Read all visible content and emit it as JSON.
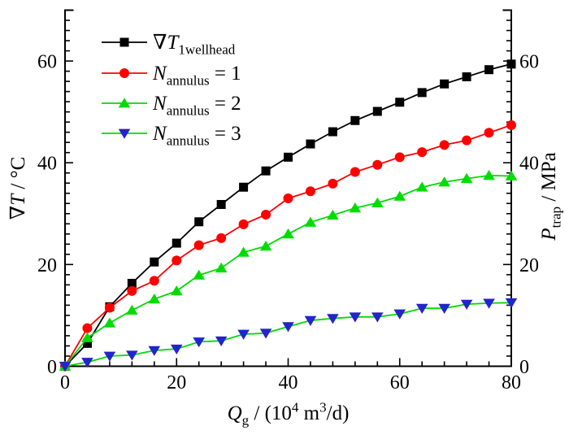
{
  "chart_data": {
    "type": "line",
    "title": "",
    "xlabel": "Q_g / (10^4 m^3/d)",
    "ylabel_left": "∇T / °C",
    "ylabel_right": "P_trap / MPa",
    "xlim": [
      0,
      80
    ],
    "ylim": [
      0,
      70
    ],
    "grid": false,
    "legend_position": "top-left-inside",
    "x_major_ticks": [
      0,
      20,
      40,
      60,
      80
    ],
    "x_minor_step": 4,
    "y_major_ticks": [
      0,
      20,
      40,
      60
    ],
    "y_minor_step": 2,
    "x_tick_labels": [
      "0",
      "20",
      "40",
      "60",
      "80"
    ],
    "y_tick_labels_left": [
      "0",
      "20",
      "40",
      "60"
    ],
    "y_tick_labels_right": [
      "0",
      "20",
      "40",
      "60"
    ],
    "frame_color": "#000000",
    "x": [
      0,
      4,
      8,
      12,
      16,
      20,
      24,
      28,
      32,
      36,
      40,
      44,
      48,
      52,
      56,
      60,
      64,
      68,
      72,
      76,
      80
    ],
    "series": [
      {
        "name": "∇T_1wellhead",
        "marker": "square",
        "marker_color": "#000000",
        "line_color": "#000000",
        "values": [
          0,
          4.5,
          11.7,
          16.3,
          20.5,
          24.2,
          28.4,
          31.8,
          35.2,
          38.4,
          41.1,
          43.7,
          46.1,
          48.3,
          50.1,
          51.9,
          53.8,
          55.5,
          56.9,
          58.3,
          59.4
        ],
        "label_segments": [
          {
            "t": "∇"
          },
          {
            "t": "T",
            "s": "i"
          },
          {
            "t": "1wellhead",
            "s": "sub"
          }
        ]
      },
      {
        "name": "N_annulus = 1",
        "marker": "circle",
        "marker_color": "#FF0000",
        "line_color": "#FF0000",
        "values": [
          0,
          7.5,
          11.5,
          14.8,
          16.8,
          20.8,
          23.8,
          25.2,
          27.9,
          29.8,
          33.0,
          34.4,
          35.9,
          38.2,
          39.6,
          41.1,
          42.1,
          43.5,
          44.4,
          45.9,
          47.4
        ],
        "label_segments": [
          {
            "t": "N",
            "s": "i"
          },
          {
            "t": "annulus",
            "s": "sub"
          },
          {
            "t": " = 1"
          }
        ]
      },
      {
        "name": "N_annulus = 2",
        "marker": "triangle-up",
        "marker_color": "#00DC00",
        "line_color": "#00DC00",
        "values": [
          0,
          5.6,
          8.5,
          11.0,
          13.2,
          14.8,
          17.9,
          19.3,
          22.4,
          23.6,
          26.0,
          28.3,
          29.7,
          31.1,
          32.1,
          33.4,
          35.2,
          36.2,
          36.9,
          37.5,
          37.4
        ],
        "label_segments": [
          {
            "t": "N",
            "s": "i"
          },
          {
            "t": "annulus",
            "s": "sub"
          },
          {
            "t": " = 2"
          }
        ]
      },
      {
        "name": "N_annulus = 3",
        "marker": "triangle-down",
        "marker_color": "#2424CC",
        "line_color": "#00DC00",
        "values": [
          0,
          0.8,
          2.0,
          2.2,
          3.1,
          3.4,
          4.8,
          5.0,
          6.3,
          6.5,
          7.8,
          9.0,
          9.4,
          9.7,
          9.7,
          10.3,
          11.4,
          11.4,
          12.2,
          12.4,
          12.5
        ],
        "label_segments": [
          {
            "t": "N",
            "s": "i"
          },
          {
            "t": "annulus",
            "s": "sub"
          },
          {
            "t": " = 3"
          }
        ]
      }
    ],
    "xlabel_segments": [
      {
        "t": "Q",
        "s": "i"
      },
      {
        "t": "g",
        "s": "sub"
      },
      {
        "t": " / (10"
      },
      {
        "t": "4",
        "s": "sup"
      },
      {
        "t": " m"
      },
      {
        "t": "3",
        "s": "sup"
      },
      {
        "t": "/d)"
      }
    ],
    "ylabel_left_segments": [
      {
        "t": "∇"
      },
      {
        "t": "T",
        "s": "i"
      },
      {
        "t": " / °C"
      }
    ],
    "ylabel_right_segments": [
      {
        "t": "P",
        "s": "i"
      },
      {
        "t": "trap",
        "s": "sub"
      },
      {
        "t": " / MPa"
      }
    ]
  }
}
